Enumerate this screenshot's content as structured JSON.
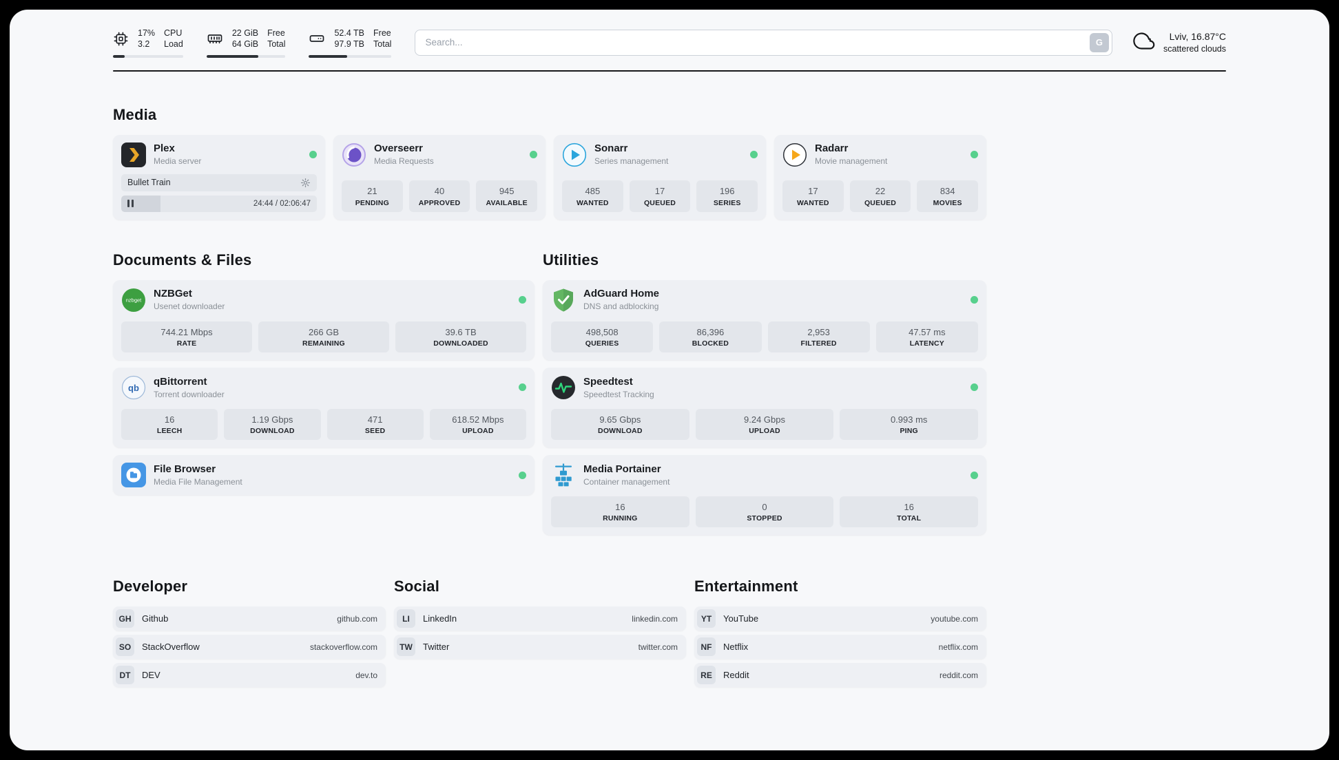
{
  "colors": {
    "status_online": "#57d08d"
  },
  "topbar": {
    "cpu": {
      "percent": "17%",
      "load": "3.2",
      "label1": "CPU",
      "label2": "Load",
      "bar": 17
    },
    "ram": {
      "free": "22 GiB",
      "total": "64 GiB",
      "label1": "Free",
      "label2": "Total",
      "bar": 66
    },
    "disk": {
      "free": "52.4 TB",
      "total": "97.9 TB",
      "label1": "Free",
      "label2": "Total",
      "bar": 46
    },
    "search": {
      "placeholder": "Search...",
      "engine_button": "G"
    },
    "weather": {
      "location_temp": "Lviv, 16.87°C",
      "condition": "scattered clouds"
    }
  },
  "icons": {
    "nzbget_badge": "nzbget",
    "qbittorrent_badge": "qb"
  },
  "sections": {
    "media": {
      "title": "Media",
      "plex": {
        "name": "Plex",
        "subtitle": "Media server",
        "now_playing": "Bullet Train",
        "time": "24:44 / 02:06:47",
        "progress_percent": 20
      },
      "overseerr": {
        "name": "Overseerr",
        "subtitle": "Media Requests",
        "stats": [
          {
            "value": "21",
            "label": "PENDING"
          },
          {
            "value": "40",
            "label": "APPROVED"
          },
          {
            "value": "945",
            "label": "AVAILABLE"
          }
        ]
      },
      "sonarr": {
        "name": "Sonarr",
        "subtitle": "Series management",
        "stats": [
          {
            "value": "485",
            "label": "WANTED"
          },
          {
            "value": "17",
            "label": "QUEUED"
          },
          {
            "value": "196",
            "label": "SERIES"
          }
        ]
      },
      "radarr": {
        "name": "Radarr",
        "subtitle": "Movie management",
        "stats": [
          {
            "value": "17",
            "label": "WANTED"
          },
          {
            "value": "22",
            "label": "QUEUED"
          },
          {
            "value": "834",
            "label": "MOVIES"
          }
        ]
      }
    },
    "documents": {
      "title": "Documents & Files",
      "nzbget": {
        "name": "NZBGet",
        "subtitle": "Usenet downloader",
        "stats": [
          {
            "value": "744.21 Mbps",
            "label": "RATE"
          },
          {
            "value": "266 GB",
            "label": "REMAINING"
          },
          {
            "value": "39.6 TB",
            "label": "DOWNLOADED"
          }
        ]
      },
      "qbittorrent": {
        "name": "qBittorrent",
        "subtitle": "Torrent downloader",
        "stats": [
          {
            "value": "16",
            "label": "LEECH"
          },
          {
            "value": "1.19 Gbps",
            "label": "DOWNLOAD"
          },
          {
            "value": "471",
            "label": "SEED"
          },
          {
            "value": "618.52 Mbps",
            "label": "UPLOAD"
          }
        ]
      },
      "filebrowser": {
        "name": "File Browser",
        "subtitle": "Media File Management"
      }
    },
    "utilities": {
      "title": "Utilities",
      "adguard": {
        "name": "AdGuard Home",
        "subtitle": "DNS and adblocking",
        "stats": [
          {
            "value": "498,508",
            "label": "QUERIES"
          },
          {
            "value": "86,396",
            "label": "BLOCKED"
          },
          {
            "value": "2,953",
            "label": "FILTERED"
          },
          {
            "value": "47.57 ms",
            "label": "LATENCY"
          }
        ]
      },
      "speedtest": {
        "name": "Speedtest",
        "subtitle": "Speedtest Tracking",
        "stats": [
          {
            "value": "9.65 Gbps",
            "label": "DOWNLOAD"
          },
          {
            "value": "9.24 Gbps",
            "label": "UPLOAD"
          },
          {
            "value": "0.993 ms",
            "label": "PING"
          }
        ]
      },
      "portainer": {
        "name": "Media Portainer",
        "subtitle": "Container management",
        "stats": [
          {
            "value": "16",
            "label": "RUNNING"
          },
          {
            "value": "0",
            "label": "STOPPED"
          },
          {
            "value": "16",
            "label": "TOTAL"
          }
        ]
      }
    },
    "bookmarks": [
      {
        "title": "Developer",
        "items": [
          {
            "abbr": "GH",
            "name": "Github",
            "url": "github.com"
          },
          {
            "abbr": "SO",
            "name": "StackOverflow",
            "url": "stackoverflow.com"
          },
          {
            "abbr": "DT",
            "name": "DEV",
            "url": "dev.to"
          }
        ]
      },
      {
        "title": "Social",
        "items": [
          {
            "abbr": "LI",
            "name": "LinkedIn",
            "url": "linkedin.com"
          },
          {
            "abbr": "TW",
            "name": "Twitter",
            "url": "twitter.com"
          }
        ]
      },
      {
        "title": "Entertainment",
        "items": [
          {
            "abbr": "YT",
            "name": "YouTube",
            "url": "youtube.com"
          },
          {
            "abbr": "NF",
            "name": "Netflix",
            "url": "netflix.com"
          },
          {
            "abbr": "RE",
            "name": "Reddit",
            "url": "reddit.com"
          }
        ]
      }
    ]
  }
}
